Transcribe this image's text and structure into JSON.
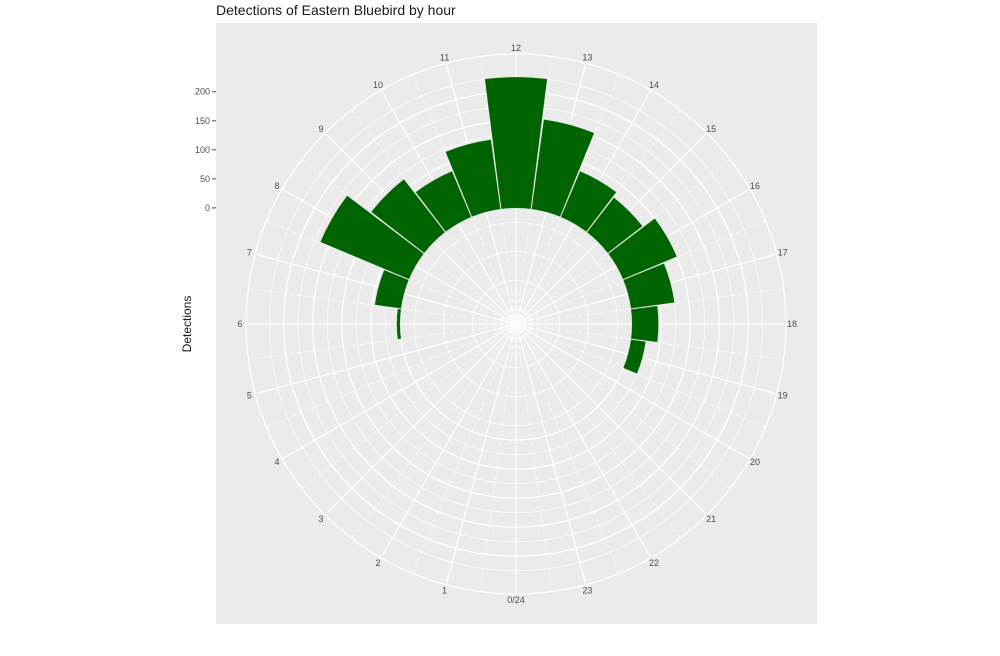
{
  "chart_data": {
    "type": "bar",
    "coord": "polar",
    "title": "Detections of Eastern Bluebird by hour",
    "xlabel": "",
    "ylabel": "Detections",
    "hours": [
      0,
      1,
      2,
      3,
      4,
      5,
      6,
      7,
      8,
      9,
      10,
      11,
      12,
      13,
      14,
      15,
      16,
      17,
      18,
      19,
      20,
      21,
      22,
      23
    ],
    "theta_labels": [
      "0/24",
      "1",
      "2",
      "3",
      "4",
      "5",
      "6",
      "7",
      "8",
      "9",
      "10",
      "11",
      "12",
      "13",
      "14",
      "15",
      "16",
      "17",
      "18",
      "19",
      "20",
      "21",
      "22",
      "23"
    ],
    "values": [
      0,
      0,
      0,
      0,
      0,
      0,
      5,
      45,
      165,
      115,
      85,
      120,
      225,
      155,
      85,
      75,
      100,
      75,
      45,
      25,
      0,
      0,
      0,
      0
    ],
    "ylim": [
      -200,
      265
    ],
    "y_ticks": [
      0,
      50,
      100,
      150,
      200
    ],
    "y_tick_labels": [
      "0",
      "50",
      "100",
      "150",
      "200"
    ],
    "grid": true,
    "colors": {
      "bar": "#006400",
      "panel": "#ebebeb",
      "grid": "#ffffff"
    }
  }
}
